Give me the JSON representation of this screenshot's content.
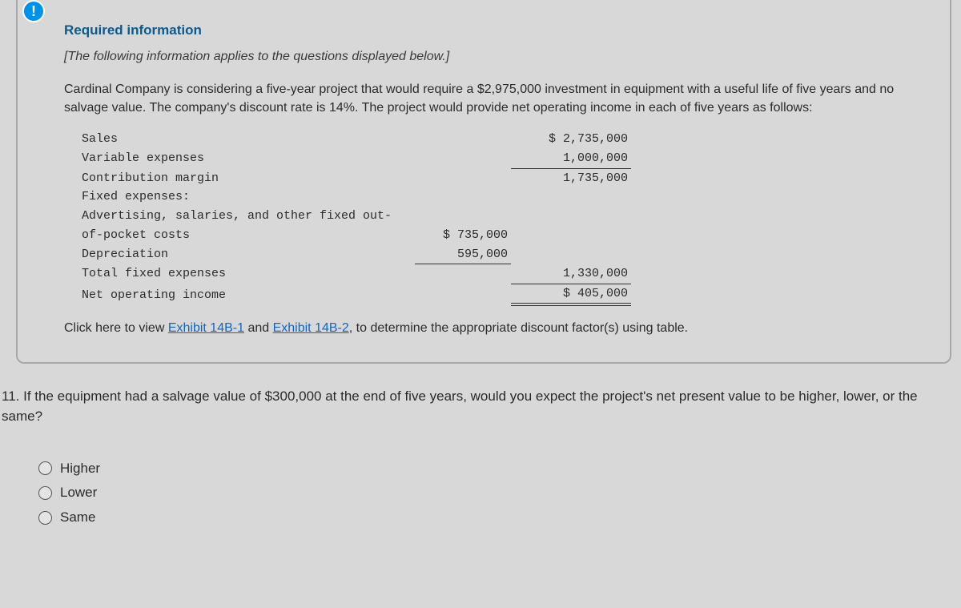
{
  "alert_icon": "!",
  "required": {
    "title": "Required information",
    "note": "[The following information applies to the questions displayed below.]",
    "paragraph": "Cardinal Company is considering a five-year project that would require a $2,975,000 investment in equipment with a useful life of five years and no salvage value. The company's discount rate is 14%. The project would provide net operating income in each of five years as follows:"
  },
  "income": {
    "rows": {
      "sales_label": "Sales",
      "sales_value": "$ 2,735,000",
      "varexp_label": "Variable expenses",
      "varexp_value": "1,000,000",
      "contrib_label": "Contribution margin",
      "contrib_value": "1,735,000",
      "fixed_header": "Fixed expenses:",
      "adv_label": "Advertising, salaries, and other fixed out-",
      "adv_label2": "of-pocket costs",
      "adv_value": "$ 735,000",
      "dep_label": "Depreciation",
      "dep_value": "595,000",
      "totfix_label": "Total fixed expenses",
      "totfix_value": "1,330,000",
      "noi_label": "Net operating income",
      "noi_value": "$ 405,000"
    }
  },
  "links_line": {
    "pre": "Click here to view ",
    "link1": "Exhibit 14B-1",
    "mid": " and ",
    "link2": "Exhibit 14B-2",
    "post": ", to determine the appropriate discount factor(s) using table."
  },
  "question": {
    "text": "11. If the equipment had a salvage value of $300,000 at the end of five years, would you expect the project's net present value to be higher, lower, or the same?"
  },
  "options": [
    "Higher",
    "Lower",
    "Same"
  ]
}
